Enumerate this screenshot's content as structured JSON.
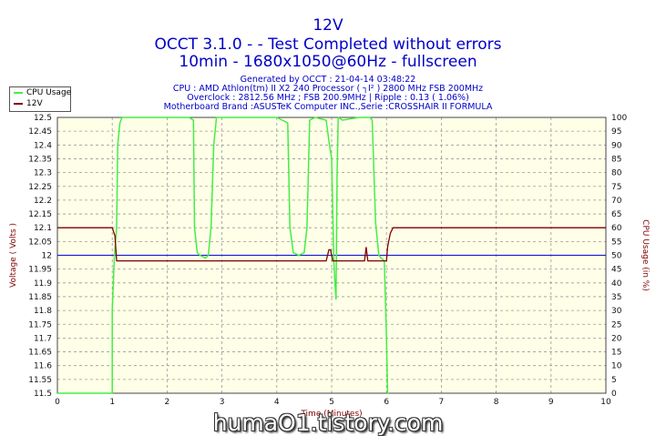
{
  "header": {
    "title": "12V",
    "line2": "OCCT 3.1.0 -  - Test Completed without errors",
    "line3": "10min - 1680x1050@60Hz - fullscreen",
    "sub1": "Generated by OCCT : 21-04-14 03:48:22",
    "sub2": "CPU : AMD Athlon(tm) II X2 240 Processor ( ┐I² ) 2800 MHz FSB 200MHz",
    "sub3": "Overclock : 2812.56 MHz ; FSB 200.9MHz | Ripple : 0.13 ( 1.06%)",
    "sub4": "Motherboard Brand :ASUSTeK Computer INC.,Serie :CROSSHAIR II FORMULA"
  },
  "watermark": "humaO1.tistory.com",
  "colors": {
    "cpu_usage": "#44ee44",
    "voltage": "#800000",
    "reference": "#2020e0",
    "plot_bg": "#ffffe8",
    "axis_text": "#800000"
  },
  "chart_data": {
    "type": "line",
    "xlabel": "Time (Minutes)",
    "ylabel": "Voltage ( Volts )",
    "y2label": "CPU Usage (in %)",
    "xlim": [
      0,
      10
    ],
    "ylim": [
      11.5,
      12.5
    ],
    "y2lim": [
      0,
      100
    ],
    "x_ticks": [
      "0",
      "1",
      "2",
      "3",
      "4",
      "5",
      "6",
      "7",
      "8",
      "9",
      "10"
    ],
    "y_ticks": [
      "12.5",
      "12.45",
      "12.4",
      "12.35",
      "12.3",
      "12.25",
      "12.2",
      "12.15",
      "12.1",
      "12.05",
      "12",
      "11.95",
      "11.9",
      "11.85",
      "11.8",
      "11.75",
      "11.7",
      "11.65",
      "11.6",
      "11.55",
      "11.5"
    ],
    "y2_ticks": [
      "100",
      "95",
      "90",
      "85",
      "80",
      "75",
      "70",
      "65",
      "60",
      "55",
      "50",
      "45",
      "40",
      "35",
      "30",
      "25",
      "20",
      "15",
      "10",
      "5",
      "0"
    ],
    "grid": true,
    "legend_position": "top-left",
    "reference_line": 12.0,
    "series": [
      {
        "name": "CPU Usage",
        "axis": "right",
        "x": [
          0,
          1.0,
          1.0,
          1.04,
          1.08,
          1.1,
          1.14,
          1.18,
          1.2,
          1.3,
          1.6,
          2.0,
          2.4,
          2.48,
          2.5,
          2.55,
          2.6,
          2.7,
          2.75,
          2.8,
          2.85,
          2.9,
          3.0,
          3.5,
          4.0,
          4.1,
          4.2,
          4.24,
          4.3,
          4.4,
          4.5,
          4.55,
          4.6,
          4.7,
          4.9,
          4.96,
          5.0,
          5.04,
          5.06,
          5.08,
          5.1,
          5.12,
          5.2,
          5.5,
          5.7,
          5.74,
          5.8,
          5.86,
          5.9,
          5.96,
          6.0,
          6.02,
          6.04
        ],
        "values": [
          0,
          0,
          30,
          50,
          60,
          90,
          98,
          100,
          100,
          100,
          100,
          100,
          100,
          99,
          60,
          51,
          50,
          49,
          50,
          60,
          90,
          100,
          100,
          100,
          100,
          99,
          98,
          60,
          51,
          50,
          51,
          60,
          99,
          100,
          99,
          90,
          85,
          48,
          40,
          34,
          80,
          100,
          99,
          100,
          100,
          99,
          62,
          50,
          49,
          48,
          20,
          0,
          0
        ]
      },
      {
        "name": "12V",
        "axis": "left",
        "x": [
          0,
          1.0,
          1.05,
          1.08,
          1.12,
          2.0,
          3.0,
          4.0,
          4.9,
          4.95,
          4.98,
          5.02,
          5.05,
          5.5,
          5.6,
          5.63,
          5.66,
          5.7,
          6.0,
          6.02,
          6.07,
          6.12,
          7.0,
          8.0,
          9.0,
          10.0
        ],
        "values": [
          12.1,
          12.1,
          12.07,
          11.98,
          11.98,
          11.98,
          11.98,
          11.98,
          11.98,
          12.02,
          12.02,
          11.98,
          11.98,
          11.98,
          11.98,
          12.03,
          11.98,
          11.98,
          11.98,
          12.03,
          12.08,
          12.1,
          12.1,
          12.1,
          12.1,
          12.1
        ]
      }
    ]
  }
}
